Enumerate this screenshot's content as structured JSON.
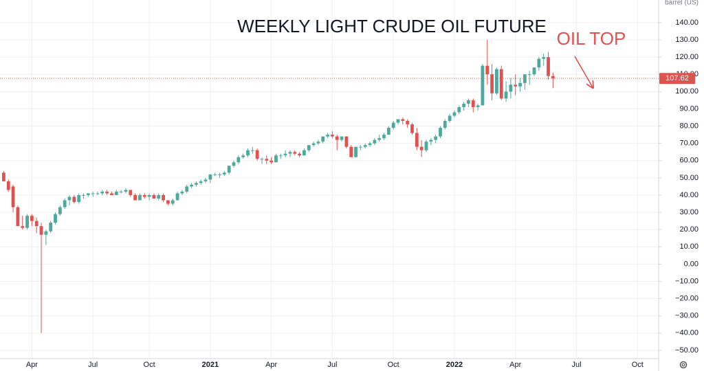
{
  "chart_data": {
    "type": "candlestick",
    "title": "WEEKLY LIGHT CRUDE OIL FUTURE",
    "annotation": "OIL TOP",
    "unit_label": "barrel (US)",
    "up_color": "#4ca99c",
    "down_color": "#e0524f",
    "grid": true,
    "categories": [
      null,
      null,
      null,
      null,
      null,
      null,
      "Apr",
      null,
      null,
      null,
      null,
      null,
      null,
      null,
      null,
      null,
      null,
      null,
      null,
      "Jul",
      null,
      null,
      null,
      null,
      null,
      null,
      null,
      null,
      null,
      null,
      null,
      "Oct",
      null,
      null,
      null,
      null,
      null,
      null,
      null,
      null,
      null,
      null,
      null,
      null,
      "2021",
      null,
      null,
      null,
      null,
      null,
      null,
      null,
      null,
      null,
      null,
      null,
      null,
      "Apr",
      null,
      null,
      null,
      null,
      null,
      null,
      null,
      null,
      null,
      null,
      null,
      null,
      "Jul",
      null,
      null,
      null,
      null,
      null,
      null,
      null,
      null,
      null,
      null,
      null,
      null,
      "Oct",
      null,
      null,
      null,
      null,
      null,
      null,
      null,
      null,
      null,
      null,
      null,
      null,
      "2022",
      null,
      null,
      null,
      null,
      null,
      null,
      null,
      null,
      null,
      null,
      null,
      null,
      "Apr",
      null,
      null,
      null,
      null,
      null,
      null,
      null,
      null,
      null,
      null,
      null,
      null,
      "Jul",
      null,
      null,
      null,
      null,
      null,
      null,
      null,
      null,
      null,
      null,
      null,
      null,
      "Oct",
      null,
      null,
      null,
      null
    ],
    "open": [
      53,
      48,
      45,
      33,
      22,
      21,
      28,
      25,
      22,
      17,
      19,
      24,
      29,
      33,
      37,
      39,
      36,
      40,
      40,
      41,
      41,
      41,
      42,
      41,
      40,
      42,
      42,
      43,
      40,
      37,
      40,
      39,
      40,
      38,
      40,
      37,
      35,
      37,
      41,
      42,
      45,
      46,
      47,
      48,
      49,
      52,
      52,
      52,
      53,
      57,
      59,
      62,
      63,
      66,
      66,
      61,
      61,
      60,
      59,
      63,
      63,
      64,
      65,
      64,
      63,
      66,
      69,
      70,
      71,
      74,
      75,
      74,
      72,
      74,
      68,
      62,
      68,
      68,
      69,
      70,
      72,
      73,
      75,
      79,
      82,
      84,
      83,
      81,
      76,
      68,
      66,
      71,
      72,
      74,
      79,
      83,
      86,
      88,
      91,
      93,
      95,
      91,
      92,
      115,
      110,
      99,
      113,
      96,
      100,
      104,
      103,
      105,
      110,
      110,
      114,
      119,
      120,
      109,
      null,
      null,
      null,
      null,
      null,
      null,
      null,
      null,
      null,
      null,
      null,
      null,
      null,
      null,
      null,
      null,
      null,
      null,
      null,
      null,
      null,
      null
    ],
    "high": [
      54,
      49,
      46,
      34,
      28,
      29,
      29,
      27,
      24,
      20,
      25,
      30,
      34,
      38,
      40,
      40,
      41,
      41,
      41,
      42,
      42,
      43,
      43,
      42,
      43,
      43,
      44,
      43,
      41,
      41,
      41,
      41,
      41,
      41,
      41,
      37,
      38,
      42,
      43,
      46,
      47,
      48,
      49,
      50,
      52,
      53,
      53,
      54,
      57,
      60,
      63,
      64,
      67,
      68,
      67,
      62,
      63,
      62,
      64,
      64,
      66,
      66,
      66,
      65,
      67,
      69,
      71,
      72,
      74,
      76,
      77,
      75,
      74,
      74,
      69,
      68,
      69,
      70,
      71,
      73,
      75,
      76,
      80,
      83,
      84,
      85,
      84,
      82,
      79,
      72,
      72,
      73,
      75,
      80,
      84,
      87,
      89,
      92,
      94,
      96,
      96,
      93,
      116,
      130,
      116,
      114,
      115,
      106,
      108,
      110,
      108,
      110,
      112,
      114,
      120,
      122,
      123,
      111,
      null,
      null,
      null,
      null,
      null,
      null,
      null,
      null,
      null,
      null,
      null,
      null,
      null,
      null,
      null,
      null,
      null,
      null,
      null,
      null,
      null,
      null
    ],
    "low": [
      48,
      42,
      30,
      22,
      20,
      20,
      22,
      18,
      -40,
      11,
      18,
      23,
      28,
      32,
      34,
      35,
      35,
      38,
      39,
      39,
      40,
      40,
      40,
      40,
      40,
      41,
      41,
      39,
      37,
      37,
      38,
      37,
      38,
      37,
      36,
      34,
      34,
      37,
      40,
      41,
      44,
      45,
      46,
      47,
      47,
      51,
      50,
      51,
      52,
      56,
      58,
      61,
      62,
      64,
      60,
      58,
      58,
      58,
      59,
      61,
      62,
      62,
      63,
      62,
      63,
      65,
      68,
      69,
      70,
      73,
      73,
      66,
      71,
      67,
      62,
      62,
      66,
      67,
      68,
      69,
      71,
      72,
      75,
      78,
      81,
      81,
      79,
      75,
      66,
      62,
      65,
      69,
      70,
      73,
      78,
      82,
      85,
      87,
      89,
      91,
      88,
      89,
      92,
      104,
      95,
      98,
      95,
      94,
      96,
      98,
      100,
      101,
      104,
      109,
      112,
      115,
      107,
      102,
      null,
      null,
      null,
      null,
      null,
      null,
      null,
      null,
      null,
      null,
      null,
      null,
      null,
      null,
      null,
      null,
      null,
      null,
      null,
      null,
      null,
      null
    ],
    "close": [
      48,
      43,
      33,
      22,
      21,
      28,
      25,
      22,
      17,
      19,
      24,
      29,
      33,
      37,
      39,
      36,
      40,
      40,
      41,
      41,
      41,
      42,
      41,
      40,
      42,
      42,
      43,
      40,
      37,
      40,
      39,
      40,
      38,
      40,
      37,
      35,
      37,
      41,
      42,
      45,
      46,
      47,
      48,
      49,
      52,
      52,
      52,
      53,
      57,
      59,
      62,
      63,
      66,
      66,
      61,
      61,
      60,
      59,
      63,
      63,
      64,
      65,
      64,
      63,
      66,
      69,
      70,
      71,
      74,
      75,
      74,
      72,
      74,
      68,
      62,
      68,
      68,
      69,
      70,
      72,
      73,
      75,
      79,
      82,
      84,
      83,
      81,
      76,
      68,
      66,
      71,
      72,
      74,
      79,
      83,
      86,
      88,
      91,
      93,
      95,
      91,
      92,
      115,
      110,
      99,
      113,
      96,
      100,
      104,
      103,
      105,
      110,
      110,
      114,
      119,
      120,
      109,
      107.62,
      null,
      null,
      null,
      null,
      null,
      null,
      null,
      null,
      null,
      null,
      null,
      null,
      null,
      null,
      null,
      null,
      null,
      null,
      null,
      null,
      null,
      null
    ],
    "ylim": [
      -54.8,
      153.1
    ],
    "yticks": [
      {
        "value": 140,
        "label": "140.00"
      },
      {
        "value": 130,
        "label": "130.00"
      },
      {
        "value": 120,
        "label": "120.00"
      },
      {
        "value": 110,
        "label": "110.00"
      },
      {
        "value": 100,
        "label": "100.00"
      },
      {
        "value": 90,
        "label": "90.00"
      },
      {
        "value": 80,
        "label": "80.00"
      },
      {
        "value": 70,
        "label": "70.00"
      },
      {
        "value": 60,
        "label": "60.00"
      },
      {
        "value": 50,
        "label": "50.00"
      },
      {
        "value": 40,
        "label": "40.00"
      },
      {
        "value": 30,
        "label": "30.00"
      },
      {
        "value": 20,
        "label": "20.00"
      },
      {
        "value": 10,
        "label": "10.00"
      },
      {
        "value": 0,
        "label": "0.00"
      },
      {
        "value": -10,
        "label": "−10.00"
      },
      {
        "value": -20,
        "label": "−20.00"
      },
      {
        "value": -30,
        "label": "−30.00"
      },
      {
        "value": -40,
        "label": "−40.00"
      },
      {
        "value": -50,
        "label": "−50.00"
      }
    ]
  }
}
